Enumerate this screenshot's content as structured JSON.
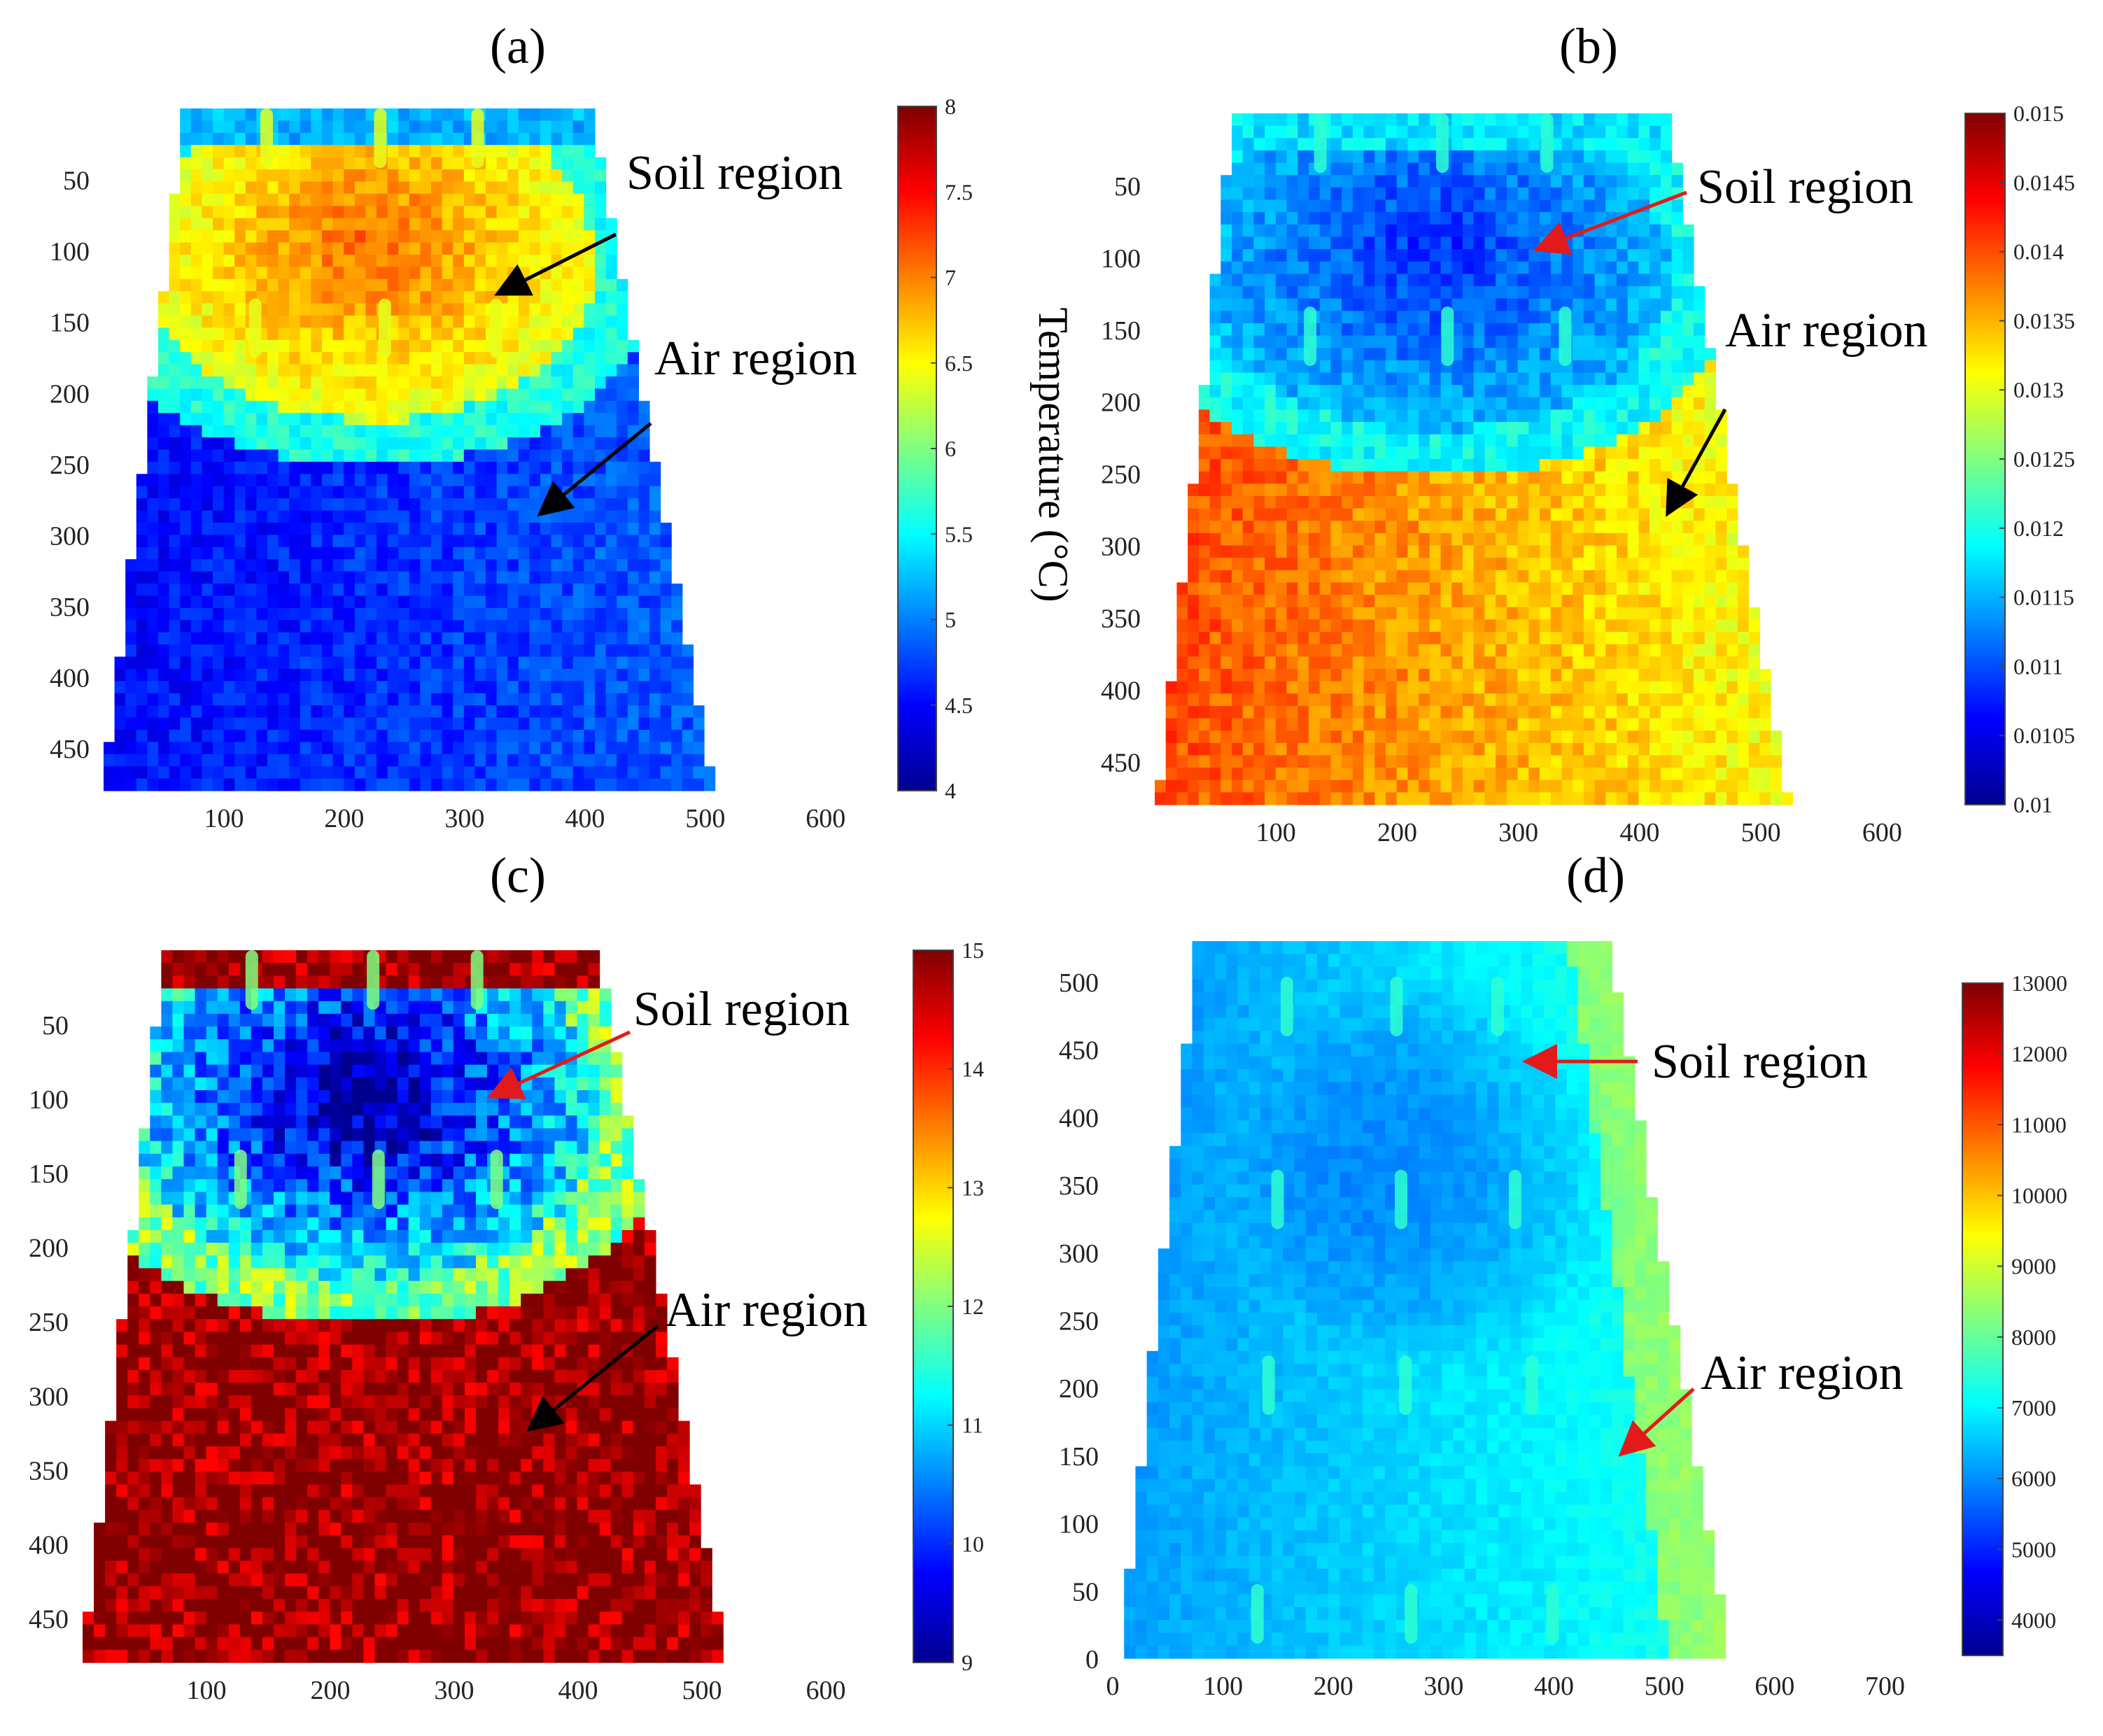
{
  "figure": {
    "colors": {
      "jet": [
        "#00008f",
        "#0000ff",
        "#0080ff",
        "#00ffff",
        "#80ff80",
        "#ffff00",
        "#ff8000",
        "#ff0000",
        "#800000"
      ],
      "black_arrow": "#000000",
      "red_arrow": "#e31a1c"
    }
  },
  "chart_data": [
    {
      "type": "heatmap",
      "panel_label": "(a)",
      "x_ticks": [
        100,
        200,
        300,
        400,
        500,
        600
      ],
      "y_ticks": [
        50,
        100,
        150,
        200,
        250,
        300,
        350,
        400,
        450
      ],
      "y_direction": "down",
      "colorbar": {
        "ticks": [
          "4",
          "4.5",
          "5",
          "5.5",
          "6",
          "6.5",
          "7",
          "7.5",
          "8"
        ],
        "range": [
          4,
          8
        ],
        "label": "Temperature (°C)"
      },
      "annotations": [
        {
          "text": "Soil region",
          "arrow_color": "black"
        },
        {
          "text": "Air region",
          "arrow_color": "black"
        }
      ],
      "field": {
        "soil": 0.78,
        "air": 0.13,
        "edge": 0.4,
        "noise": 0.05,
        "stakes": 0.6
      }
    },
    {
      "type": "heatmap",
      "panel_label": "(b)",
      "x_ticks": [
        100,
        200,
        300,
        400,
        500,
        600
      ],
      "y_ticks": [
        50,
        100,
        150,
        200,
        250,
        300,
        350,
        400,
        450
      ],
      "y_direction": "down",
      "colorbar": {
        "ticks": [
          "0.01",
          "0.0105",
          "0.011",
          "0.0115",
          "0.012",
          "0.0125",
          "0.013",
          "0.0135",
          "0.014",
          "0.0145",
          "0.015"
        ],
        "range": [
          0.01,
          0.015
        ]
      },
      "annotations": [
        {
          "text": "Soil region",
          "arrow_color": "red"
        },
        {
          "text": "Air region",
          "arrow_color": "black"
        }
      ],
      "field": {
        "soil": 0.16,
        "air": 0.8,
        "edge": 0.38,
        "noise": 0.05,
        "stakes": 0.42
      }
    },
    {
      "type": "heatmap",
      "panel_label": "(c)",
      "x_ticks": [
        100,
        200,
        300,
        400,
        500,
        600
      ],
      "y_ticks": [
        50,
        100,
        150,
        200,
        250,
        300,
        350,
        400,
        450
      ],
      "y_direction": "down",
      "colorbar": {
        "ticks": [
          "9",
          "10",
          "11",
          "12",
          "13",
          "14",
          "15"
        ],
        "range": [
          9,
          15
        ]
      },
      "annotations": [
        {
          "text": "Soil region",
          "arrow_color": "red"
        },
        {
          "text": "Air region",
          "arrow_color": "black"
        }
      ],
      "field": {
        "soil": 0.18,
        "air": 0.99,
        "edge": 0.5,
        "noise": 0.12,
        "stakes": 0.5
      }
    },
    {
      "type": "heatmap",
      "panel_label": "(d)",
      "x_ticks": [
        0,
        100,
        200,
        300,
        400,
        500,
        600,
        700
      ],
      "y_ticks": [
        0,
        50,
        100,
        150,
        200,
        250,
        300,
        350,
        400,
        450,
        500
      ],
      "y_direction": "up",
      "colorbar": {
        "ticks": [
          "4000",
          "5000",
          "6000",
          "7000",
          "8000",
          "9000",
          "10000",
          "11000",
          "12000",
          "13000"
        ],
        "range": [
          3500,
          13000
        ]
      },
      "annotations": [
        {
          "text": "Soil region",
          "arrow_color": "red"
        },
        {
          "text": "Air region",
          "arrow_color": "red"
        }
      ],
      "field": {
        "soil": 0.23,
        "air": 0.3,
        "edge": 0.3,
        "noise": 0.02,
        "stakes": 0.42
      }
    }
  ]
}
